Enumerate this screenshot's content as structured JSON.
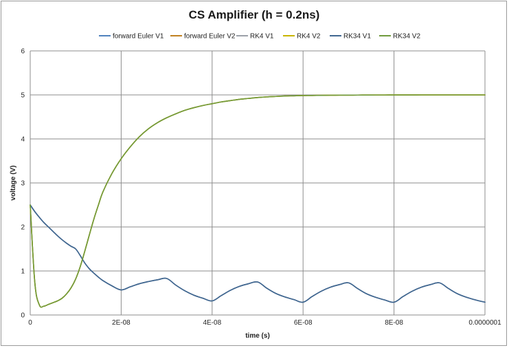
{
  "chart_data": {
    "type": "line",
    "title": "CS Amplifier (h = 0.2ns)",
    "xlabel": "time (s)",
    "ylabel": "voltage (V)",
    "xlim": [
      0,
      1e-07
    ],
    "ylim": [
      0,
      6
    ],
    "x_ticks": [
      0,
      2e-08,
      4e-08,
      6e-08,
      8e-08,
      1e-07
    ],
    "x_tick_labels": [
      "0",
      "2E-08",
      "4E-08",
      "6E-08",
      "8E-08",
      "0.0000001"
    ],
    "y_ticks": [
      0,
      1,
      2,
      3,
      4,
      5,
      6
    ],
    "y_tick_labels": [
      "0",
      "1",
      "2",
      "3",
      "4",
      "5",
      "6"
    ],
    "grid": true,
    "legend_position": "top",
    "x": [
      0,
      1e-09,
      2e-09,
      3e-09,
      4e-09,
      5e-09,
      6e-09,
      7e-09,
      8e-09,
      9e-09,
      1e-08,
      1.1e-08,
      1.2e-08,
      1.3e-08,
      1.4e-08,
      1.5e-08,
      1.6e-08,
      1.8e-08,
      2e-08,
      2.2e-08,
      2.4e-08,
      2.6e-08,
      2.8e-08,
      3e-08,
      3.2e-08,
      3.4e-08,
      3.6e-08,
      3.8e-08,
      4e-08,
      4.2e-08,
      4.4e-08,
      4.6e-08,
      4.8e-08,
      5e-08,
      5.2e-08,
      5.4e-08,
      5.6e-08,
      5.8e-08,
      6e-08,
      6.2e-08,
      6.4e-08,
      6.6e-08,
      6.8e-08,
      7e-08,
      7.2e-08,
      7.4e-08,
      7.6e-08,
      7.8e-08,
      8e-08,
      8.2e-08,
      8.4e-08,
      8.6e-08,
      8.8e-08,
      9e-08,
      9.2e-08,
      9.4e-08,
      9.6e-08,
      9.8e-08,
      1e-07
    ],
    "series": [
      {
        "name": "forward  Euler  V1",
        "color": "#4f81bd",
        "values": [
          2.5,
          2.35,
          2.22,
          2.1,
          2.0,
          1.9,
          1.8,
          1.71,
          1.63,
          1.56,
          1.5,
          1.35,
          1.18,
          1.05,
          0.95,
          0.86,
          0.78,
          0.66,
          0.57,
          0.64,
          0.71,
          0.76,
          0.8,
          0.83,
          0.68,
          0.55,
          0.45,
          0.38,
          0.32,
          0.44,
          0.56,
          0.65,
          0.71,
          0.75,
          0.61,
          0.49,
          0.41,
          0.35,
          0.29,
          0.42,
          0.54,
          0.63,
          0.69,
          0.73,
          0.6,
          0.48,
          0.4,
          0.34,
          0.29,
          0.42,
          0.54,
          0.63,
          0.69,
          0.73,
          0.6,
          0.48,
          0.4,
          0.34,
          0.29
        ]
      },
      {
        "name": "forward  Euler  V2",
        "color": "#c0801f",
        "values": [
          2.5,
          0.75,
          0.23,
          0.2,
          0.24,
          0.28,
          0.32,
          0.38,
          0.48,
          0.62,
          0.82,
          1.1,
          1.45,
          1.82,
          2.18,
          2.5,
          2.8,
          3.22,
          3.55,
          3.82,
          4.05,
          4.23,
          4.37,
          4.48,
          4.57,
          4.65,
          4.71,
          4.76,
          4.8,
          4.84,
          4.87,
          4.9,
          4.92,
          4.94,
          4.955,
          4.965,
          4.975,
          4.98,
          4.985,
          4.988,
          4.99,
          4.992,
          4.994,
          4.995,
          4.996,
          4.997,
          4.998,
          4.998,
          4.999,
          4.999,
          4.999,
          5.0,
          5.0,
          5.0,
          5.0,
          5.0,
          5.0,
          5.0,
          5.0
        ]
      },
      {
        "name": "RK4  V1",
        "color": "#9ba0a8",
        "values": [
          2.5,
          2.35,
          2.22,
          2.1,
          2.0,
          1.9,
          1.8,
          1.71,
          1.63,
          1.56,
          1.5,
          1.35,
          1.18,
          1.05,
          0.95,
          0.86,
          0.78,
          0.66,
          0.57,
          0.64,
          0.71,
          0.76,
          0.8,
          0.83,
          0.68,
          0.55,
          0.45,
          0.38,
          0.32,
          0.44,
          0.56,
          0.65,
          0.71,
          0.75,
          0.61,
          0.49,
          0.41,
          0.35,
          0.29,
          0.42,
          0.54,
          0.63,
          0.69,
          0.73,
          0.6,
          0.48,
          0.4,
          0.34,
          0.29,
          0.42,
          0.54,
          0.63,
          0.69,
          0.73,
          0.6,
          0.48,
          0.4,
          0.34,
          0.29
        ]
      },
      {
        "name": "RK4  V2",
        "color": "#c8b400",
        "values": [
          2.5,
          0.75,
          0.23,
          0.2,
          0.24,
          0.28,
          0.32,
          0.38,
          0.48,
          0.62,
          0.82,
          1.1,
          1.45,
          1.82,
          2.18,
          2.5,
          2.8,
          3.22,
          3.55,
          3.82,
          4.05,
          4.23,
          4.37,
          4.48,
          4.57,
          4.65,
          4.71,
          4.76,
          4.8,
          4.84,
          4.87,
          4.9,
          4.92,
          4.94,
          4.955,
          4.965,
          4.975,
          4.98,
          4.985,
          4.988,
          4.99,
          4.992,
          4.994,
          4.995,
          4.996,
          4.997,
          4.998,
          4.998,
          4.999,
          4.999,
          4.999,
          5.0,
          5.0,
          5.0,
          5.0,
          5.0,
          5.0,
          5.0,
          5.0
        ]
      },
      {
        "name": "RK34  V1",
        "color": "#3f6690",
        "values": [
          2.5,
          2.35,
          2.22,
          2.1,
          2.0,
          1.9,
          1.8,
          1.71,
          1.63,
          1.56,
          1.5,
          1.35,
          1.18,
          1.05,
          0.95,
          0.86,
          0.78,
          0.66,
          0.57,
          0.64,
          0.71,
          0.76,
          0.8,
          0.83,
          0.68,
          0.55,
          0.45,
          0.38,
          0.32,
          0.44,
          0.56,
          0.65,
          0.71,
          0.75,
          0.61,
          0.49,
          0.41,
          0.35,
          0.29,
          0.42,
          0.54,
          0.63,
          0.69,
          0.73,
          0.6,
          0.48,
          0.4,
          0.34,
          0.29,
          0.42,
          0.54,
          0.63,
          0.69,
          0.73,
          0.6,
          0.48,
          0.4,
          0.34,
          0.29
        ]
      },
      {
        "name": "RK34  V2",
        "color": "#6f9a3c",
        "values": [
          2.5,
          0.75,
          0.23,
          0.2,
          0.24,
          0.28,
          0.32,
          0.38,
          0.48,
          0.62,
          0.82,
          1.1,
          1.45,
          1.82,
          2.18,
          2.5,
          2.8,
          3.22,
          3.55,
          3.82,
          4.05,
          4.23,
          4.37,
          4.48,
          4.57,
          4.65,
          4.71,
          4.76,
          4.8,
          4.84,
          4.87,
          4.9,
          4.92,
          4.94,
          4.955,
          4.965,
          4.975,
          4.98,
          4.985,
          4.988,
          4.99,
          4.992,
          4.994,
          4.995,
          4.996,
          4.997,
          4.998,
          4.998,
          4.999,
          4.999,
          4.999,
          5.0,
          5.0,
          5.0,
          5.0,
          5.0,
          5.0,
          5.0,
          5.0
        ]
      }
    ]
  }
}
